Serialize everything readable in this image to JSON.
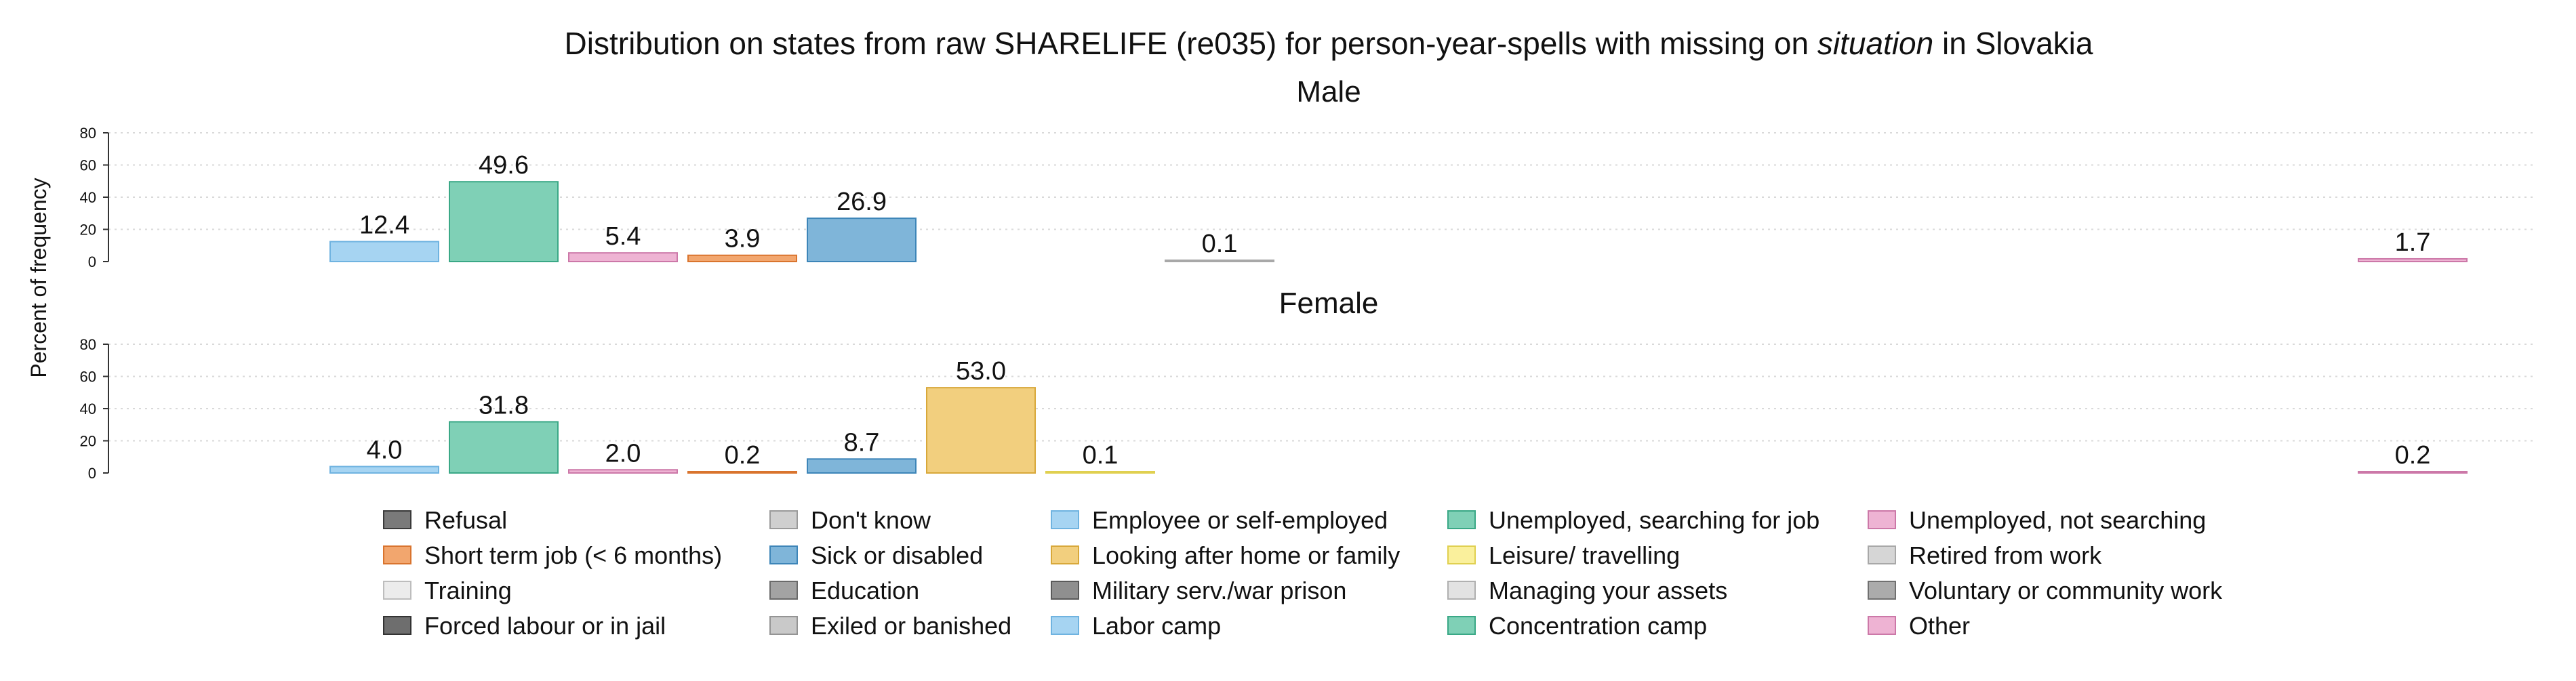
{
  "chart_data": {
    "type": "bar",
    "title": {
      "prefix": "Distribution on states from raw SHARELIFE (re035) for person-year-spells with missing on ",
      "italic": "situation",
      "suffix": " in Slovakia"
    },
    "ylabel": "Percent of frequency",
    "ylim": [
      0,
      80
    ],
    "yticks": [
      0,
      20,
      40,
      60,
      80
    ],
    "grid": true,
    "legend_position": "bottom",
    "categories": [
      "Refusal",
      "Don't know",
      "Employee or self-employed",
      "Unemployed, searching for job",
      "Unemployed, not searching",
      "Short term job (< 6 months)",
      "Sick or disabled",
      "Looking after home or family",
      "Leisure/ travelling",
      "Retired from work",
      "Training",
      "Education",
      "Military serv./war prison",
      "Managing your assets",
      "Voluntary or community work",
      "Forced labour or in jail",
      "Exiled or banished",
      "Labor camp",
      "Concentration camp",
      "Other"
    ],
    "colors": [
      "#7a7a7a",
      "#cfcfcf",
      "#a6d4f2",
      "#7fd0b6",
      "#eeb3d3",
      "#f2a66e",
      "#7fb5d9",
      "#f2cf7e",
      "#faf09c",
      "#d6d6d6",
      "#ececec",
      "#a3a3a3",
      "#8f8f8f",
      "#e2e2e2",
      "#ababab",
      "#6e6e6e",
      "#c9c9c9",
      "#a6d4f2",
      "#7fd0b6",
      "#eeb3d3"
    ],
    "borders": [
      "#3a3a3a",
      "#9a9a9a",
      "#6fb3e0",
      "#3aa886",
      "#cc78a8",
      "#d9742e",
      "#3d85b8",
      "#d8a83a",
      "#e0d050",
      "#a8a8a8",
      "#bdbdbd",
      "#6a6a6a",
      "#5a5a5a",
      "#b0b0b0",
      "#707070",
      "#333333",
      "#949494",
      "#6fb3e0",
      "#3aa886",
      "#cc78a8"
    ],
    "bar_positions": [
      "Employee or self-employed",
      "Unemployed, searching for job",
      "Unemployed, not searching",
      "Short term job (< 6 months)",
      "Sick or disabled",
      "Looking after home or family",
      "Leisure/ travelling",
      "Retired from work",
      "Training",
      "Education",
      "Military serv./war prison",
      "Managing your assets",
      "Voluntary or community work",
      "Forced labour or in jail",
      "Exiled or banished",
      "Labor camp",
      "Concentration camp",
      "Other"
    ],
    "panels": [
      {
        "name": "Male",
        "bars": [
          {
            "category": "Employee or self-employed",
            "value": 12.4
          },
          {
            "category": "Unemployed, searching for job",
            "value": 49.6
          },
          {
            "category": "Unemployed, not searching",
            "value": 5.4
          },
          {
            "category": "Short term job (< 6 months)",
            "value": 3.9
          },
          {
            "category": "Sick or disabled",
            "value": 26.9
          },
          {
            "category": "Retired from work",
            "value": 0.1
          },
          {
            "category": "Other",
            "value": 1.7
          }
        ]
      },
      {
        "name": "Female",
        "bars": [
          {
            "category": "Employee or self-employed",
            "value": 4.0
          },
          {
            "category": "Unemployed, searching for job",
            "value": 31.8
          },
          {
            "category": "Unemployed, not searching",
            "value": 2.0
          },
          {
            "category": "Short term job (< 6 months)",
            "value": 0.2
          },
          {
            "category": "Sick or disabled",
            "value": 8.7
          },
          {
            "category": "Looking after home or family",
            "value": 53.0
          },
          {
            "category": "Leisure/ travelling",
            "value": 0.1
          },
          {
            "category": "Other",
            "value": 0.2
          }
        ]
      }
    ],
    "legend_columns": [
      [
        "Refusal",
        "Short term job (< 6 months)",
        "Training",
        "Forced labour or in jail"
      ],
      [
        "Don't know",
        "Sick or disabled",
        "Education",
        "Exiled or banished"
      ],
      [
        "Employee or self-employed",
        "Looking after home or family",
        "Military serv./war prison",
        "Labor camp"
      ],
      [
        "Unemployed, searching for job",
        "Leisure/ travelling",
        "Managing your assets",
        "Concentration camp"
      ],
      [
        "Unemployed, not searching",
        "Retired from work",
        "Voluntary or community work",
        "Other"
      ]
    ]
  }
}
